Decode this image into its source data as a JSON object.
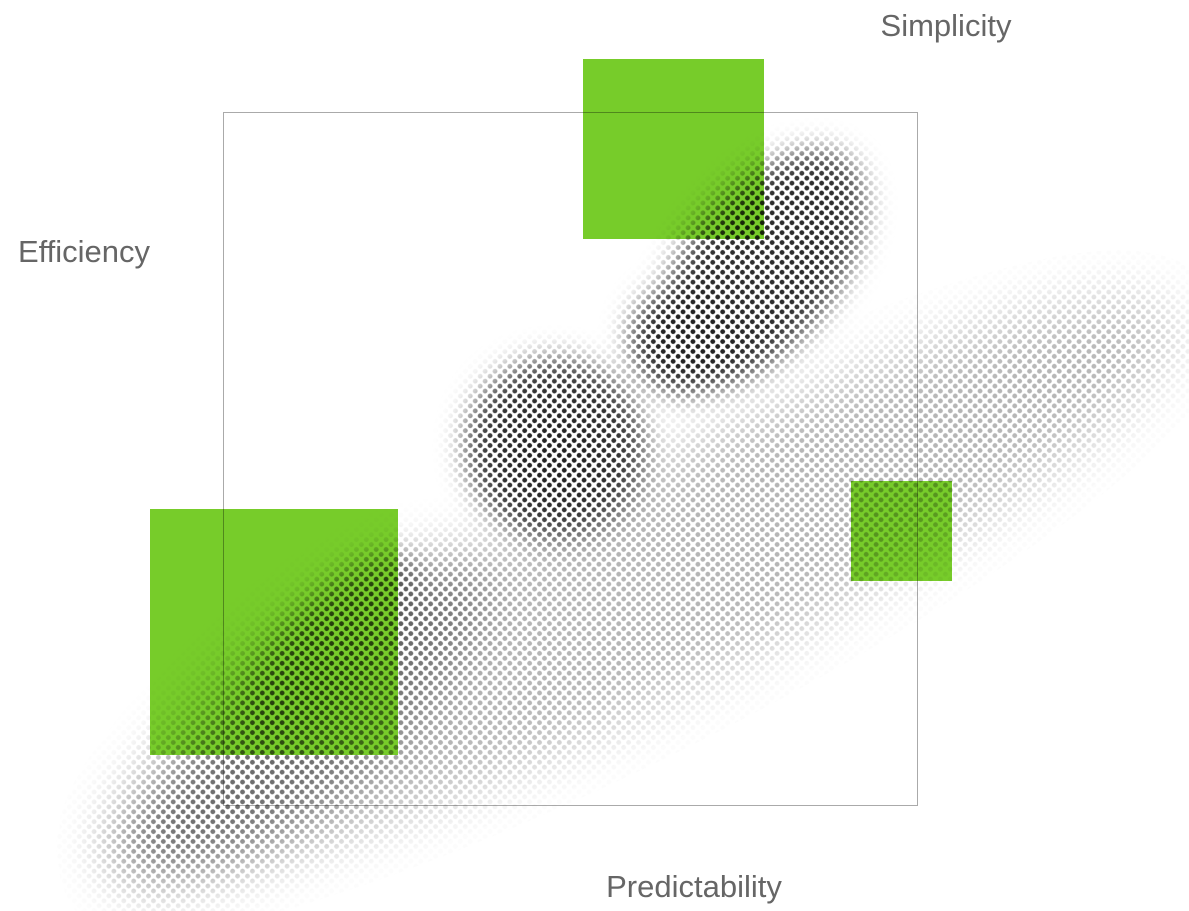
{
  "labels": {
    "top": "Simplicity",
    "left": "Efficiency",
    "bottom": "Predictability"
  }
}
